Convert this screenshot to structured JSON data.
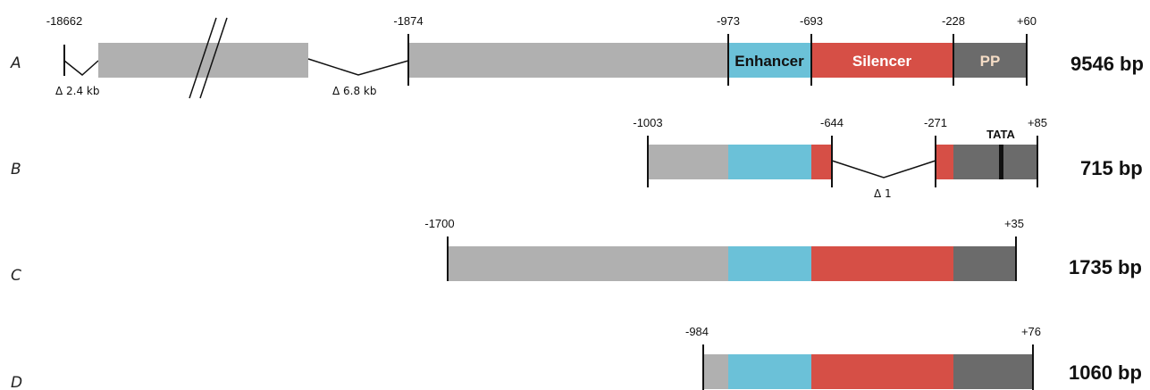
{
  "colors": {
    "upstream": "#b0b0b0",
    "enhancer": "#6bc1d8",
    "silencer": "#d64f46",
    "pp": "#6b6b6b",
    "line": "#111111"
  },
  "region_labels": {
    "enhancer": "Enhancer",
    "silencer": "Silencer",
    "pp": "PP",
    "tata": "TATA"
  },
  "constructs": [
    {
      "label": "A",
      "size": "9546 bp",
      "positions": [
        "-18662",
        "-1874",
        "-973",
        "-693",
        "-228",
        "+60"
      ],
      "deletions": [
        "Δ 2.4 kb",
        "Δ 6.8 kb"
      ]
    },
    {
      "label": "B",
      "size": "715 bp",
      "positions": [
        "-1003",
        "-644",
        "-271",
        "+85"
      ],
      "deletions": [
        "Δ 1"
      ]
    },
    {
      "label": "C",
      "size": "1735 bp",
      "positions": [
        "-1700",
        "+35"
      ],
      "deletions": []
    },
    {
      "label": "D",
      "size": "1060 bp",
      "positions": [
        "-984",
        "+76"
      ],
      "deletions": []
    }
  ]
}
